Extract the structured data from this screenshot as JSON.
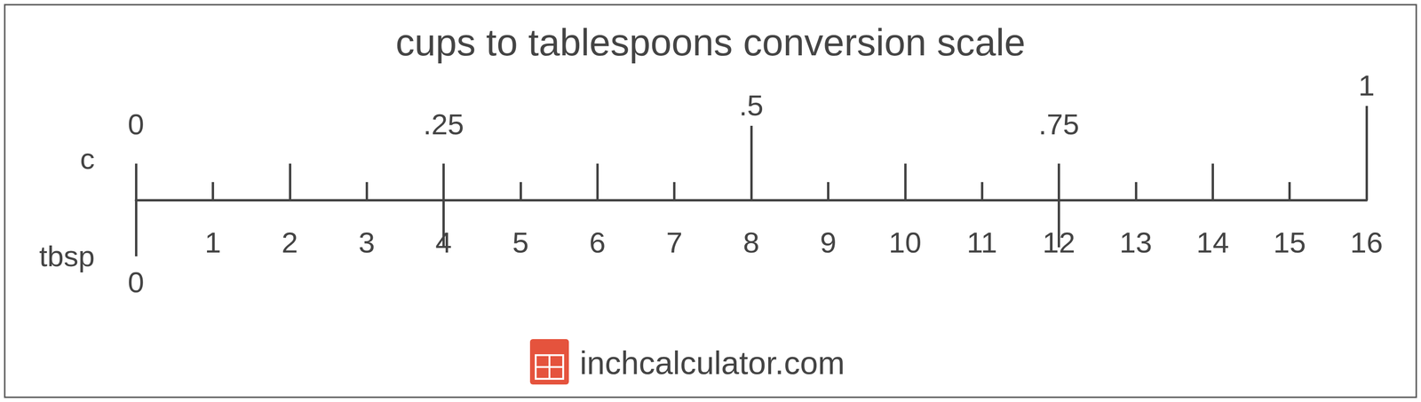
{
  "chart_data": {
    "type": "scale",
    "title": "cups to tablespoons conversion scale",
    "xlabel": "tbsp",
    "xlim": [
      0,
      16
    ],
    "xticks": [
      0,
      1,
      2,
      3,
      4,
      5,
      6,
      7,
      8,
      9,
      10,
      11,
      12,
      13,
      14,
      15,
      16
    ],
    "x2label": "c",
    "x2lim": [
      0,
      1
    ],
    "x2ticks": [
      0,
      {
        "value": 0.25,
        "label": ".25"
      },
      {
        "value": 0.5,
        "label": ".5"
      },
      {
        "value": 0.75,
        "label": ".75"
      },
      1
    ],
    "footer": "inchcalculator.com"
  }
}
